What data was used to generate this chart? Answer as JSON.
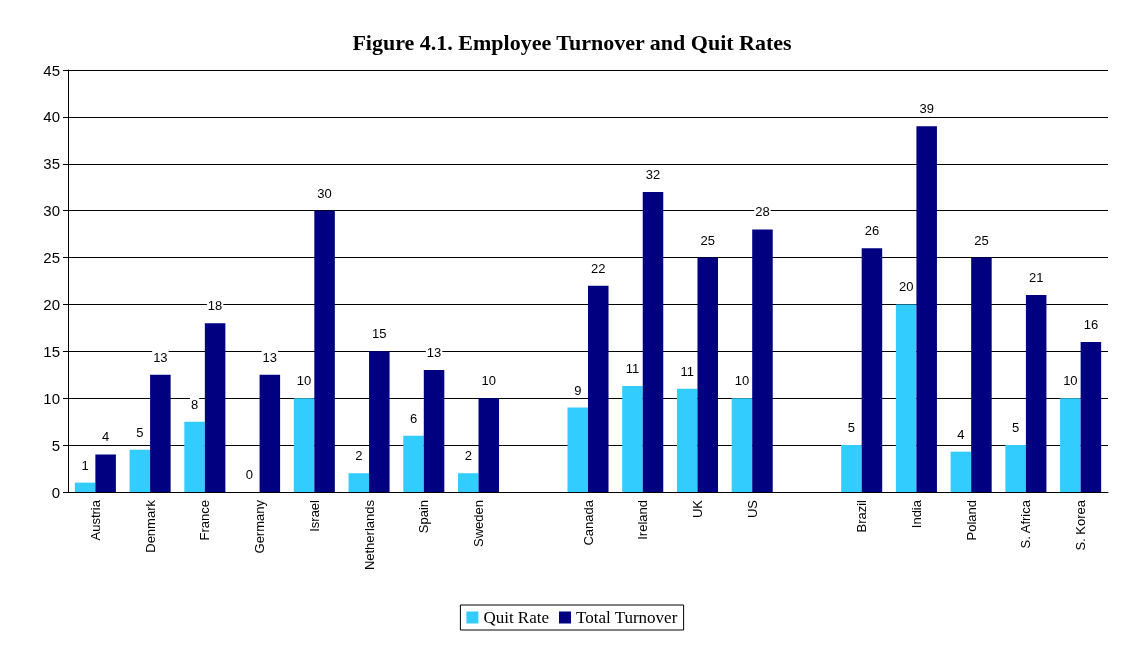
{
  "chart_data": {
    "type": "bar",
    "title": "Figure 4.1. Employee Turnover and Quit Rates",
    "categories": [
      "Austria",
      "Denmark",
      "France",
      "Germany",
      "Israel",
      "Netherlands",
      "Spain",
      "Sweden",
      null,
      "Canada",
      "Ireland",
      "UK",
      "US",
      null,
      "Brazil",
      "India",
      "Poland",
      "S. Africa",
      "S. Korea"
    ],
    "series": [
      {
        "name": "Quit Rate",
        "color": "#33ccff",
        "values": [
          1,
          4.5,
          7.5,
          0,
          10,
          2,
          6,
          2,
          null,
          9,
          11.3,
          11,
          10,
          null,
          5,
          20,
          4.3,
          5,
          10
        ],
        "value_labels": [
          "1",
          "5",
          "8",
          "0",
          "10",
          "2",
          "6",
          "2",
          null,
          "9",
          "11",
          "11",
          "10",
          null,
          "5",
          "20",
          "4",
          "5",
          "10"
        ]
      },
      {
        "name": "Total Turnover",
        "color": "#000080",
        "values": [
          4,
          12.5,
          18,
          12.5,
          30,
          15,
          13,
          10,
          null,
          22,
          32,
          25,
          28,
          null,
          26,
          39,
          25,
          21,
          16
        ],
        "value_labels": [
          "4",
          "13",
          "18",
          "13",
          "30",
          "15",
          "13",
          "10",
          null,
          "22",
          "32",
          "25",
          "28",
          null,
          "26",
          "39",
          "25",
          "21",
          "16"
        ]
      }
    ],
    "ylim": [
      0,
      45
    ],
    "yticks": [
      0,
      5,
      10,
      15,
      20,
      25,
      30,
      35,
      40,
      45
    ],
    "grid": "y",
    "legend": "bottom"
  }
}
